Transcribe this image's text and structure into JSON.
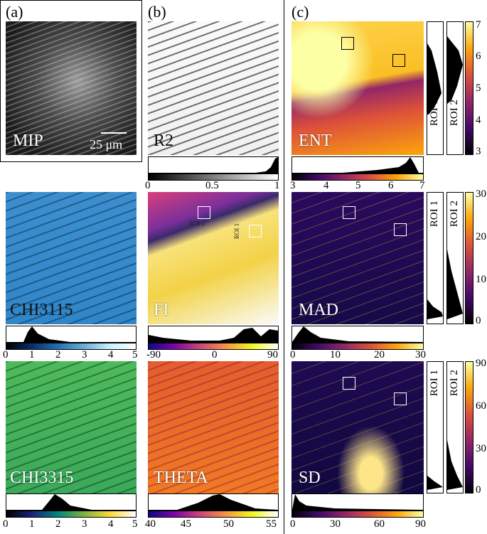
{
  "panels": {
    "a": {
      "letter": "(a)",
      "label": "MIP",
      "scalebar": "25 μm"
    },
    "b": {
      "letter": "(b)"
    },
    "c": {
      "letter": "(c)"
    }
  },
  "maps": {
    "r2": {
      "label": "R2",
      "ticks": [
        "0",
        "0.5",
        "1"
      ]
    },
    "chi3115": {
      "label": "CHI3115",
      "ticks": [
        "0",
        "1",
        "2",
        "3",
        "4",
        "5"
      ]
    },
    "fi": {
      "label": "FI",
      "ticks": [
        "-90",
        "0",
        "90"
      ],
      "roi1": "ROI 1",
      "roi2": "ROI 2"
    },
    "chi3315": {
      "label": "CHI3315",
      "ticks": [
        "0",
        "1",
        "2",
        "3",
        "4",
        "5"
      ]
    },
    "theta": {
      "label": "THETA",
      "ticks": [
        "40",
        "45",
        "50",
        "55"
      ]
    },
    "ent": {
      "label": "ENT",
      "ticks": [
        "3",
        "4",
        "5",
        "6",
        "7"
      ],
      "vticks": [
        "7",
        "6",
        "5",
        "4",
        "3"
      ]
    },
    "mad": {
      "label": "MAD",
      "ticks": [
        "0",
        "10",
        "20",
        "30"
      ],
      "vticks": [
        "30",
        "20",
        "10",
        "0"
      ]
    },
    "sd": {
      "label": "SD",
      "ticks": [
        "0",
        "30",
        "60",
        "90"
      ],
      "vticks": [
        "90",
        "60",
        "30",
        "0"
      ]
    }
  },
  "roi_labels": {
    "roi1": "ROI 1",
    "roi2": "ROI 2"
  },
  "colors": {
    "inferno": "#000004,#420a68,#932667,#dd513a,#fca50a,#fcffa4",
    "cyan": "#000000,#08306b,#2171b5,#6baed6,#c6f2ff,#ffffff",
    "rainbow": "#000000,#1a237e,#00897b,#7cb342,#fdd835,#ffffff"
  }
}
